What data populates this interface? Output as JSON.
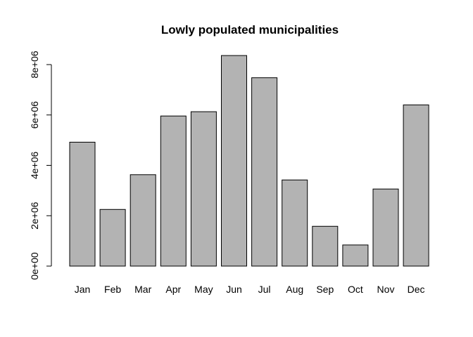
{
  "chart_data": {
    "type": "bar",
    "title": "Lowly populated municipalities",
    "xlabel": "",
    "ylabel": "",
    "categories": [
      "Jan",
      "Feb",
      "Mar",
      "Apr",
      "May",
      "Jun",
      "Jul",
      "Aug",
      "Sep",
      "Oct",
      "Nov",
      "Dec"
    ],
    "values": [
      4920000,
      2250000,
      3630000,
      5960000,
      6130000,
      8360000,
      7480000,
      3420000,
      1580000,
      840000,
      3060000,
      6400000
    ],
    "y_ticks": [
      0,
      2000000,
      4000000,
      6000000,
      8000000
    ],
    "y_tick_labels": [
      "0e+00",
      "2e+06",
      "4e+06",
      "6e+06",
      "8e+06"
    ],
    "ylim": [
      0,
      8360000
    ],
    "grid": false,
    "legend": "none",
    "bar_color": "#b3b3b3",
    "bar_border_color": "#000000"
  }
}
